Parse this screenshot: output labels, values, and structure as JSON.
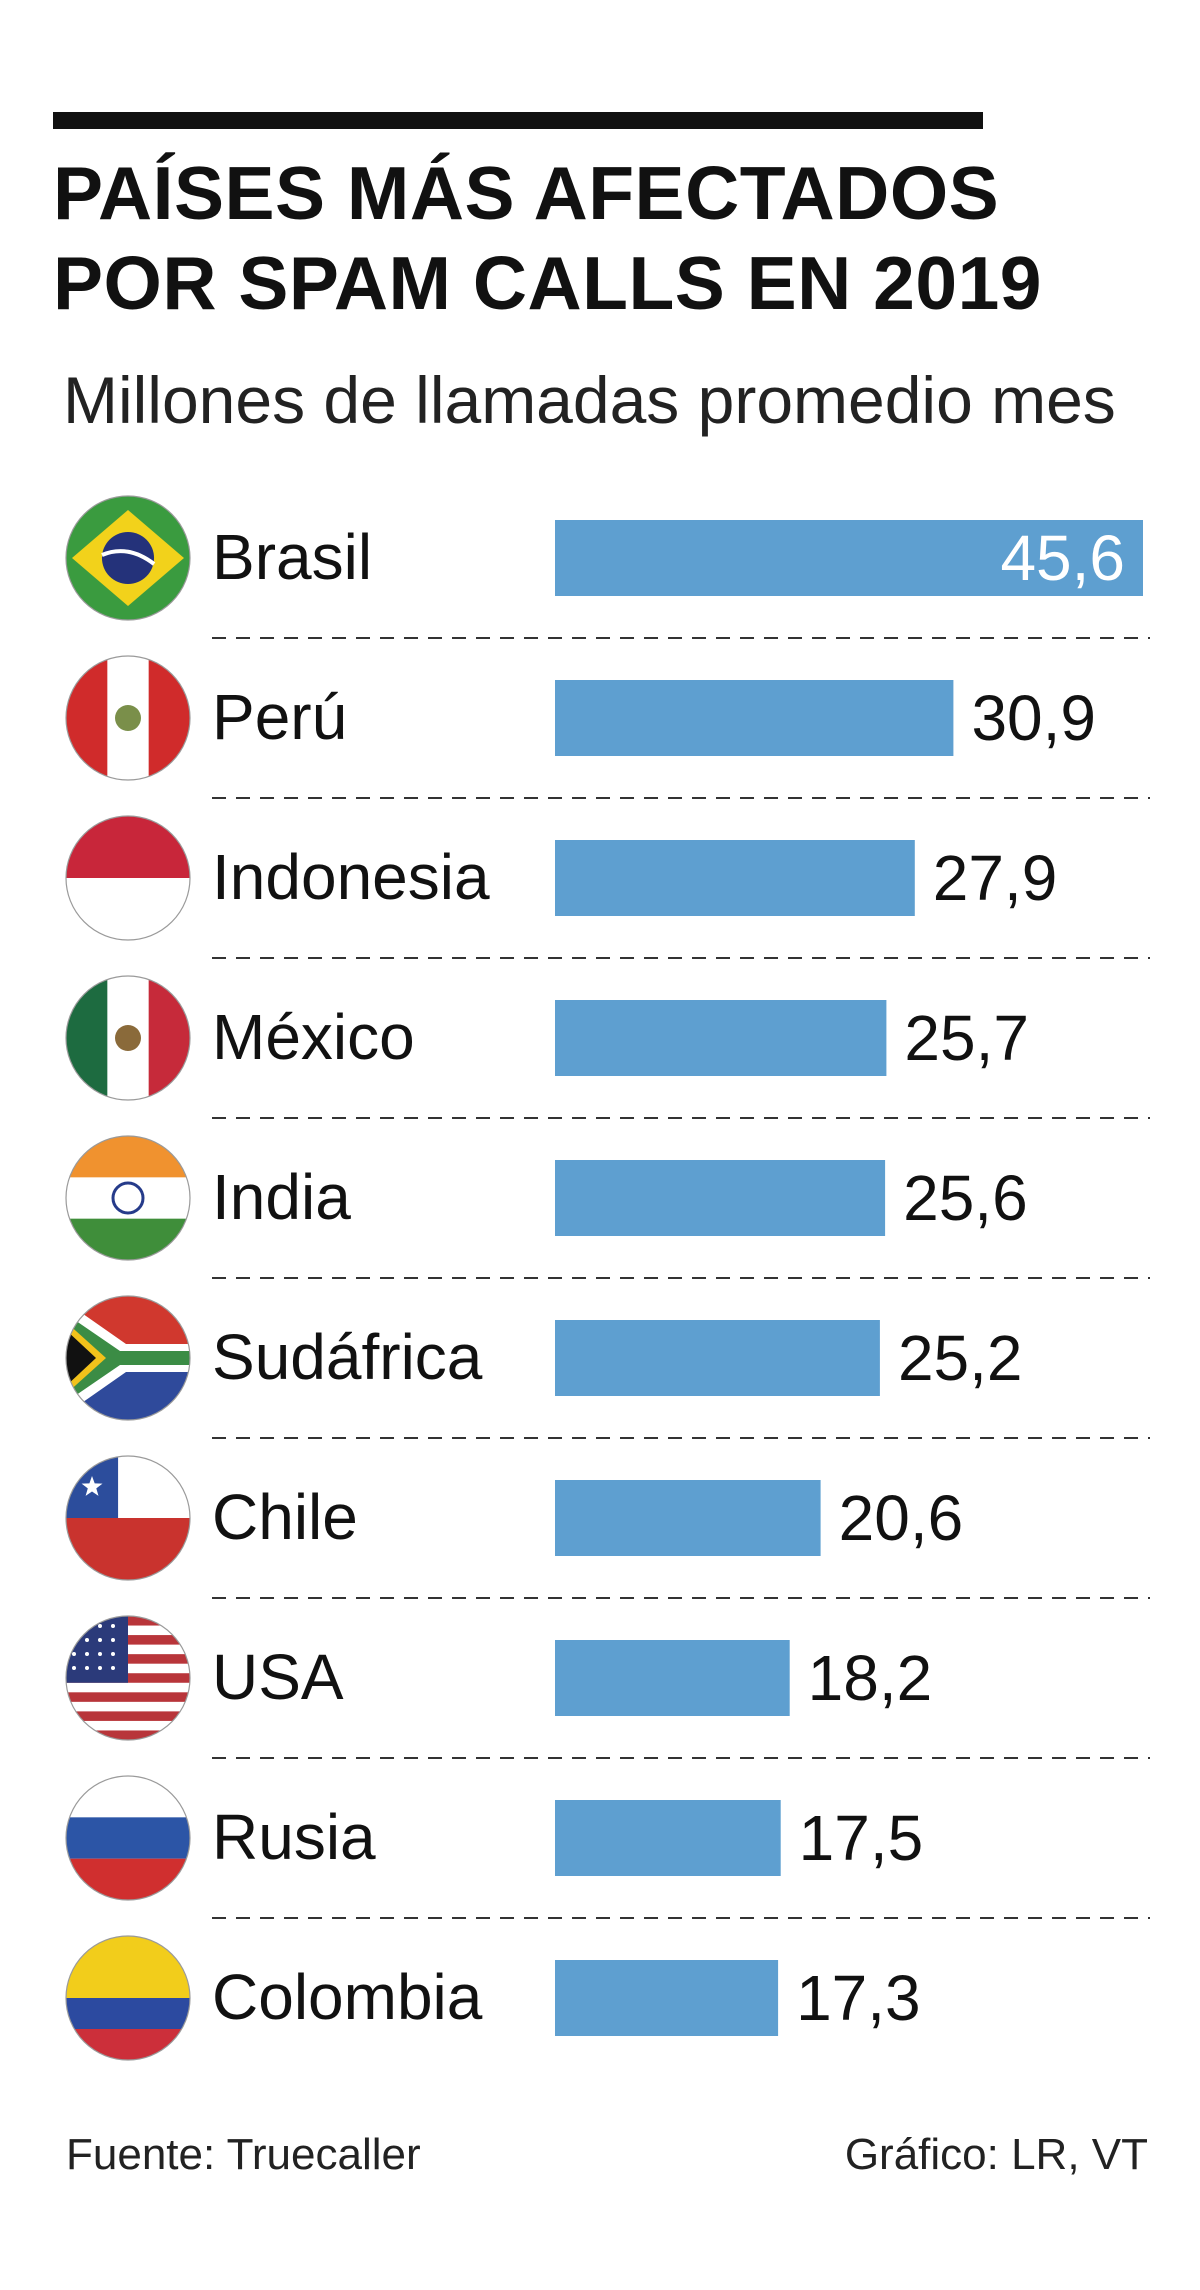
{
  "header": {
    "title_line1": "PAÍSES MÁS AFECTADOS",
    "title_line2": "POR SPAM CALLS EN 2019",
    "subtitle": "Millones de llamadas promedio mes"
  },
  "footer": {
    "source": "Fuente: Truecaller",
    "credit": "Gráfico: LR, VT"
  },
  "colors": {
    "bar": "#5e9fd0",
    "text": "#111111",
    "inside_label": "#ffffff",
    "separator": "#333333"
  },
  "chart_data": {
    "type": "bar",
    "orientation": "horizontal",
    "categories": [
      "Brasil",
      "Perú",
      "Indonesia",
      "México",
      "India",
      "Sudáfrica",
      "Chile",
      "USA",
      "Rusia",
      "Colombia"
    ],
    "values": [
      45.6,
      30.9,
      27.9,
      25.7,
      25.6,
      25.2,
      20.6,
      18.2,
      17.5,
      17.3
    ],
    "value_labels": [
      "45,6",
      "30,9",
      "27,9",
      "25,7",
      "25,6",
      "25,2",
      "20,6",
      "18,2",
      "17,5",
      "17,3"
    ],
    "flags": [
      "flag-brazil-icon",
      "flag-peru-icon",
      "flag-indonesia-icon",
      "flag-mexico-icon",
      "flag-india-icon",
      "flag-south-africa-icon",
      "flag-chile-icon",
      "flag-usa-icon",
      "flag-russia-icon",
      "flag-colombia-icon"
    ],
    "xlim": [
      0,
      45.6
    ],
    "grid": false,
    "legend": "none"
  }
}
